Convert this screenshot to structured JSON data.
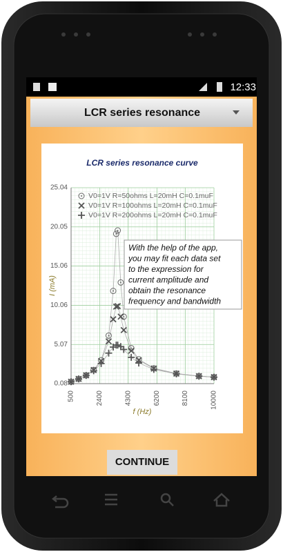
{
  "status_bar": {
    "time": "12:33"
  },
  "header": {
    "title": "LCR series resonance"
  },
  "chart_data": {
    "type": "scatter",
    "title": "LCR series resonance curve",
    "xlabel": "f (Hz)",
    "ylabel": "I (mA)",
    "x": [
      500,
      1000,
      1500,
      2000,
      2500,
      3000,
      3300,
      3500,
      3600,
      3800,
      4000,
      4500,
      5000,
      6000,
      7500,
      9000,
      10000
    ],
    "series": [
      {
        "name": "V0=1V R=50ohms L=20mH C=0.1muF",
        "marker": "circle",
        "color": "#666666",
        "values": [
          0.32,
          0.68,
          1.14,
          1.83,
          3.06,
          6.2,
          11.89,
          19.16,
          19.59,
          12.97,
          8.61,
          4.6,
          3.18,
          2.04,
          1.37,
          1.05,
          0.91
        ]
      },
      {
        "name": "V0=1V R=100ohms L=20mH C=0.1muF",
        "marker": "x",
        "color": "#555555",
        "values": [
          0.32,
          0.68,
          1.14,
          1.81,
          2.96,
          5.46,
          8.28,
          9.89,
          9.95,
          8.62,
          6.9,
          4.27,
          3.07,
          2.0,
          1.36,
          1.04,
          0.91
        ]
      },
      {
        "name": "V0=1V R=200ohms L=20mH C=0.1muF",
        "marker": "plus",
        "color": "#555555",
        "values": [
          0.32,
          0.68,
          1.12,
          1.72,
          2.64,
          3.97,
          4.74,
          4.99,
          4.99,
          4.8,
          4.43,
          3.43,
          2.71,
          1.89,
          1.32,
          1.03,
          0.9
        ]
      }
    ],
    "xlim": [
      500,
      10000
    ],
    "ylim": [
      0.08,
      25.04
    ],
    "xticks": [
      500,
      2400,
      4300,
      6200,
      8100,
      10000
    ],
    "yticks": [
      0.08,
      5.07,
      10.06,
      15.06,
      20.05,
      25.04
    ],
    "grid": true,
    "annotation": [
      "With the help of the app,",
      "you may fit each data set",
      "to the expression for",
      "current amplitude and",
      "obtain the resonance",
      "frequency and bandwidth"
    ]
  },
  "button": {
    "label": "CONTINUE"
  }
}
